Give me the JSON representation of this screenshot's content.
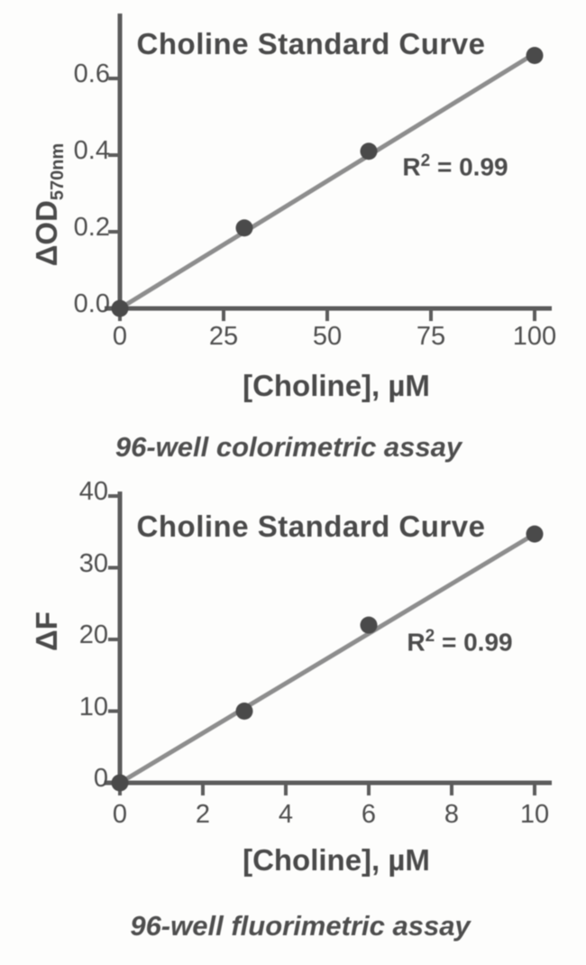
{
  "figure": {
    "background": "#fdfdfc",
    "colors": {
      "axis": "#5c5c5c",
      "trend_line": "#8d8d8d",
      "data_point": "#4a4a4a",
      "text": "#4a4a4a"
    }
  },
  "chart_data": [
    {
      "type": "scatter",
      "title": "Choline Standard Curve",
      "xlabel": "[Choline], µM",
      "ylabel": "ΔOD570nm",
      "ylabel_parts": {
        "main": "ΔOD",
        "sub": "570nm"
      },
      "caption": "96-well colorimetric assay",
      "annotation": "R² = 0.99",
      "annotation_parts": {
        "base": "R",
        "sup": "2",
        "rest": " = 0.99"
      },
      "x": [
        0,
        30,
        60,
        100
      ],
      "y": [
        0,
        0.21,
        0.41,
        0.66
      ],
      "trendline": {
        "x": [
          0,
          100
        ],
        "y": [
          0,
          0.665
        ]
      },
      "xticks": [
        "0",
        "25",
        "50",
        "75",
        "100"
      ],
      "yticks": [
        "0.0",
        "0.2",
        "0.4",
        "0.6"
      ],
      "xlim": [
        0,
        104
      ],
      "ylim": [
        0,
        0.77
      ],
      "grid": false,
      "legend": null
    },
    {
      "type": "scatter",
      "title": "Choline Standard Curve",
      "xlabel": "[Choline], µM",
      "ylabel": "ΔF",
      "ylabel_parts": {
        "main": "ΔF",
        "sub": ""
      },
      "caption": "96-well fluorimetric assay",
      "annotation": "R² = 0.99",
      "annotation_parts": {
        "base": "R",
        "sup": "2",
        "rest": " = 0.99"
      },
      "x": [
        0,
        3,
        6,
        10
      ],
      "y": [
        0,
        10,
        22,
        34.7
      ],
      "trendline": {
        "x": [
          0,
          10
        ],
        "y": [
          0,
          34.7
        ]
      },
      "xticks": [
        "0",
        "2",
        "4",
        "6",
        "8",
        "10"
      ],
      "yticks": [
        "0",
        "10",
        "20",
        "30",
        "40"
      ],
      "xlim": [
        0,
        10.4
      ],
      "ylim": [
        0,
        40.6
      ],
      "grid": false,
      "legend": null
    }
  ]
}
